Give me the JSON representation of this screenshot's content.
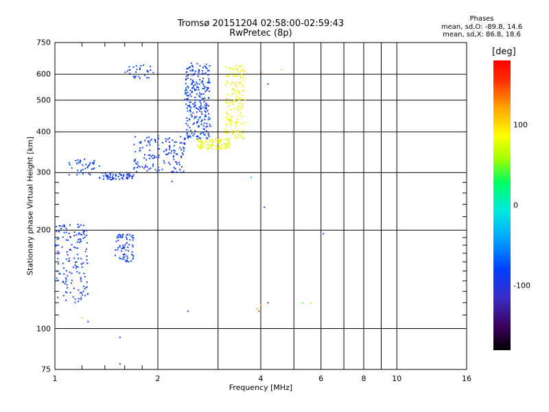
{
  "chart_data": {
    "type": "scatter",
    "title_line1": "Tromsø 20151204 02:58:00-02:59:43",
    "title_line2": "RwPretec (8p)",
    "stats": {
      "header": "Phases",
      "line_o": "mean, sd,O: -89.8, 14.6",
      "line_x": "mean, sd,X:  86.8, 18.6"
    },
    "xlabel": "Frequency [MHz]",
    "ylabel": "Stationary phase Virtual Height [km]",
    "x_scale": "log",
    "y_scale": "log",
    "xlim": [
      1,
      16
    ],
    "ylim": [
      75,
      750
    ],
    "x_ticks": [
      1,
      2,
      4,
      6,
      8,
      10,
      16
    ],
    "x_grid": [
      2,
      3,
      4,
      5,
      6,
      7,
      8,
      9,
      10,
      16
    ],
    "y_ticks": [
      75,
      100,
      200,
      300,
      400,
      500,
      600,
      750
    ],
    "y_grid": [
      100,
      200,
      300,
      400,
      500,
      600
    ],
    "grid": true,
    "colorbar": {
      "label": "[deg]",
      "ticks": [
        100,
        0,
        -100
      ],
      "range": [
        -180,
        180
      ]
    },
    "clusters": [
      {
        "name": "o-trace-low",
        "x_range": [
          1.35,
          1.7
        ],
        "h_range": [
          285,
          300
        ],
        "phase": -95,
        "count": 60
      },
      {
        "name": "o-trace-rise",
        "x_range": [
          1.7,
          2.4
        ],
        "h_range": [
          300,
          390
        ],
        "phase": -90,
        "count": 140
      },
      {
        "name": "o-trace-cusp",
        "x_range": [
          2.4,
          2.85
        ],
        "h_range": [
          380,
          650
        ],
        "phase": -90,
        "count": 260
      },
      {
        "name": "o-trace-leading",
        "x_range": [
          1.1,
          1.35
        ],
        "h_range": [
          295,
          330
        ],
        "phase": -85,
        "count": 40
      },
      {
        "name": "x-trace-base",
        "x_range": [
          2.6,
          3.25
        ],
        "h_range": [
          355,
          380
        ],
        "phase": 85,
        "count": 90
      },
      {
        "name": "x-trace-cusp",
        "x_range": [
          3.15,
          3.6
        ],
        "h_range": [
          380,
          640
        ],
        "phase": 90,
        "count": 150
      },
      {
        "name": "e-layer-cluster",
        "x_range": [
          1.0,
          1.25
        ],
        "h_range": [
          120,
          210
        ],
        "phase": -95,
        "count": 150
      },
      {
        "name": "es-cluster",
        "x_range": [
          1.5,
          1.7
        ],
        "h_range": [
          160,
          195
        ],
        "phase": -90,
        "count": 70
      },
      {
        "name": "high-echo-cluster",
        "x_range": [
          1.6,
          1.95
        ],
        "h_range": [
          580,
          640
        ],
        "phase": -90,
        "count": 30
      }
    ],
    "isolated_points": [
      {
        "x": 3.9,
        "y": 115,
        "phase": 130
      },
      {
        "x": 3.95,
        "y": 113,
        "phase": 160
      },
      {
        "x": 4.0,
        "y": 118,
        "phase": 120
      },
      {
        "x": 4.2,
        "y": 120,
        "phase": -95
      },
      {
        "x": 5.3,
        "y": 120,
        "phase": 40
      },
      {
        "x": 5.6,
        "y": 120,
        "phase": 110
      },
      {
        "x": 6.1,
        "y": 195,
        "phase": -95
      },
      {
        "x": 4.1,
        "y": 235,
        "phase": -90
      },
      {
        "x": 3.75,
        "y": 290,
        "phase": -20
      },
      {
        "x": 2.45,
        "y": 113,
        "phase": -90
      },
      {
        "x": 1.55,
        "y": 94,
        "phase": -95
      },
      {
        "x": 1.55,
        "y": 78,
        "phase": -90
      },
      {
        "x": 1.2,
        "y": 108,
        "phase": 110
      },
      {
        "x": 1.25,
        "y": 105,
        "phase": -90
      },
      {
        "x": 2.2,
        "y": 282,
        "phase": -95
      },
      {
        "x": 4.6,
        "y": 620,
        "phase": 110
      },
      {
        "x": 4.2,
        "y": 560,
        "phase": -95
      },
      {
        "x": 4.0,
        "y": 605,
        "phase": 170
      }
    ]
  }
}
